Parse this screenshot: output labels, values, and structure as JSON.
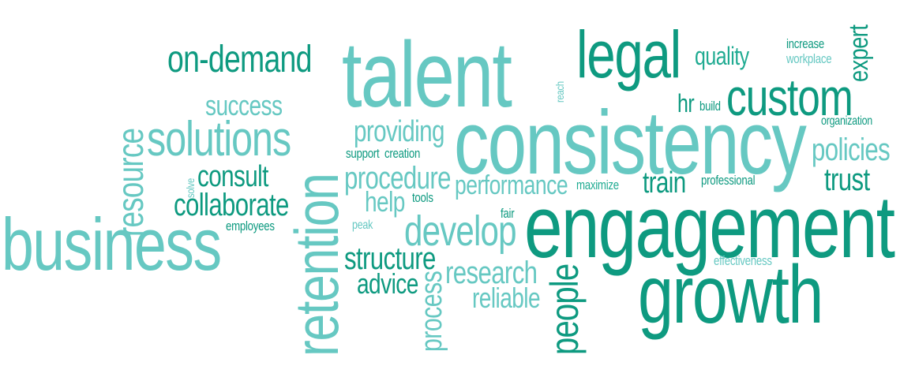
{
  "words": {
    "on_demand": "on-demand",
    "talent": "talent",
    "legal": "legal",
    "quality": "quality",
    "increase": "increase",
    "workplace": "workplace",
    "expert": "expert",
    "reach": "reach",
    "success": "success",
    "resource": "resource",
    "solutions": "solutions",
    "retention": "retention",
    "providing": "providing",
    "consistency": "consistency",
    "hr": "hr",
    "build": "build",
    "custom": "custom",
    "organization": "organization",
    "support": "support",
    "creation": "creation",
    "policies": "policies",
    "solve": "solve",
    "consult": "consult",
    "procedure": "procedure",
    "performance": "performance",
    "maximize": "maximize",
    "train": "train",
    "professional": "professional",
    "trust": "trust",
    "collaborate": "collaborate",
    "help": "help",
    "tools": "tools",
    "engagement": "engagement",
    "business": "business",
    "employees": "employees",
    "peak": "peak",
    "fair": "fair",
    "develop": "develop",
    "structure": "structure",
    "effectiveness": "effectiveness",
    "advice": "advice",
    "research": "research",
    "people": "people",
    "process": "process",
    "reliable": "reliable",
    "growth": "growth"
  },
  "colors": {
    "dark": "#0e9a80",
    "medium": "#20ab92",
    "light": "#66c8c2",
    "pale": "#8fd6d0",
    "background": "#ffffff"
  }
}
